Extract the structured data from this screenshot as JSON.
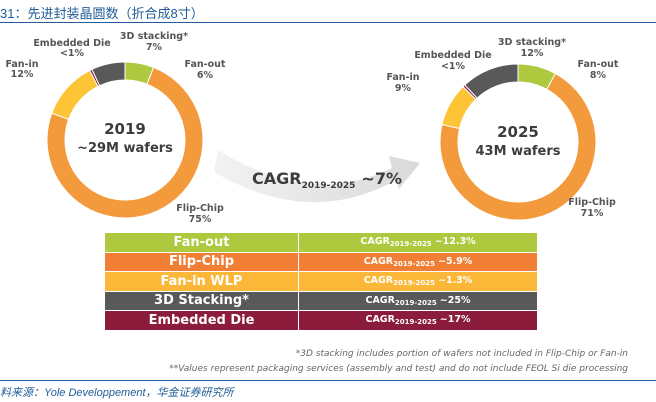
{
  "figure_title": "31：先进封装晶圆数（折合成8寸）",
  "source_note": "料来源：Yole Developpement，华金证券研究所",
  "colors": {
    "flip_chip": "#f39a3d",
    "fan_in": "#fdc436",
    "stacking": "#595959",
    "fan_out": "#afc93f",
    "embedded": "#8c1c3c",
    "arrow": "#e4e4e4",
    "title": "#1f5c99"
  },
  "chart_data": [
    {
      "type": "pie",
      "subtype": "donut",
      "center_title": "2019",
      "center_subtitle": "~29M wafers",
      "segments": [
        {
          "name": "Fan-out",
          "value": 6,
          "label": "6%",
          "color": "#afc93f"
        },
        {
          "name": "Flip-Chip",
          "value": 75,
          "label": "75%",
          "color": "#f39a3d"
        },
        {
          "name": "Fan-in",
          "value": 12,
          "label": "12%",
          "color": "#fdc436"
        },
        {
          "name": "Embedded Die",
          "value": 0.5,
          "label": "<1%",
          "color": "#8c1c3c"
        },
        {
          "name": "3D stacking*",
          "value": 7,
          "label": "7%",
          "color": "#595959"
        }
      ]
    },
    {
      "type": "pie",
      "subtype": "donut",
      "center_title": "2025",
      "center_subtitle": "43M wafers",
      "segments": [
        {
          "name": "Fan-out",
          "value": 8,
          "label": "8%",
          "color": "#afc93f"
        },
        {
          "name": "Flip-Chip",
          "value": 71,
          "label": "71%",
          "color": "#f39a3d"
        },
        {
          "name": "Fan-in",
          "value": 9,
          "label": "9%",
          "color": "#fdc436"
        },
        {
          "name": "Embedded Die",
          "value": 0.5,
          "label": "<1%",
          "color": "#8c1c3c"
        },
        {
          "name": "3D stacking*",
          "value": 12,
          "label": "12%",
          "color": "#595959"
        }
      ]
    },
    {
      "type": "table",
      "title": "CAGR 2019-2025",
      "rows": [
        {
          "name": "Fan-out",
          "cagr": "~12.3%",
          "color": "#afc93f"
        },
        {
          "name": "Flip-Chip",
          "cagr": "~5.9%",
          "color": "#f07f35"
        },
        {
          "name": "Fan-in WLP",
          "cagr": "~1.3%",
          "color": "#fbb838"
        },
        {
          "name": "3D Stacking*",
          "cagr": "~25%",
          "color": "#595959"
        },
        {
          "name": "Embedded Die",
          "cagr": "~17%",
          "color": "#8c1c3c"
        }
      ]
    }
  ],
  "cagr_arrow": {
    "prefix": "CAGR",
    "period": "2019-2025",
    "value": "~7%"
  },
  "table_prefix": "CAGR",
  "table_period": "2019-2025",
  "footnotes": [
    "*3D stacking includes portion of wafers not included in Flip-Chip or Fan-in",
    "**Values represent packaging services (assembly and test) and do not include FEOL Si die processing"
  ]
}
